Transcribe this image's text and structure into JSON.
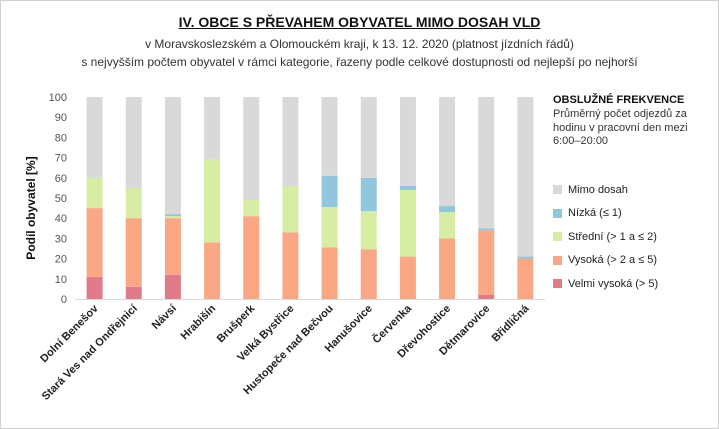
{
  "chart_data": {
    "type": "bar",
    "stacked": true,
    "title": "IV. OBCE S PŘEVAHEM OBYVATEL MIMO DOSAH VLD",
    "subtitle_line1": "v Moravskoslezském a Olomouckém kraji, k 13. 12. 2020 (platnost jízdních řádů)",
    "subtitle_line2": "s nejvyšším počtem  obyvatel v rámci kategorie, řazeny podle celkové dostupnosti od nejlepší po nejhorší",
    "ylabel": "Podíl obyvatel [%]",
    "xlabel": "",
    "ylim": [
      0,
      100
    ],
    "yticks": [
      0,
      10,
      20,
      30,
      40,
      50,
      60,
      70,
      80,
      90,
      100
    ],
    "grid": false,
    "legend_heading": "OBSLUŽNÉ FREKVENCE",
    "legend_note": "Průměrný počet odjezdů za hodinu v pracovní den mezi 6:00–20:00",
    "legend_position": "right",
    "categories": [
      "Dolní Benešov",
      "Stará Ves nad Ondřejnicí",
      "Návsí",
      "Hrabišín",
      "Brušperk",
      "Velká Bystřice",
      "Hustopeče nad Bečvou",
      "Hanušovice",
      "Červenka",
      "Dřevohostice",
      "Dětmarovice",
      "Břidličná"
    ],
    "series": [
      {
        "name": "Velmi vysoká (> 5)",
        "color": "#e07b8a",
        "values": [
          11,
          6,
          12,
          0,
          0,
          0,
          0,
          0,
          0,
          0,
          2,
          0
        ]
      },
      {
        "name": "Vysoká (> 2 a ≤ 5)",
        "color": "#f9a784",
        "values": [
          34,
          34,
          28,
          28,
          41,
          33,
          25.5,
          24.5,
          21,
          30,
          32,
          20
        ]
      },
      {
        "name": "Střední (> 1 a ≤ 2)",
        "color": "#d7eda4",
        "values": [
          15,
          15,
          1,
          41,
          8,
          23,
          20,
          19,
          33,
          13,
          0,
          0
        ]
      },
      {
        "name": "Nízká (≤ 1)",
        "color": "#92c5de",
        "values": [
          0,
          0,
          1,
          0,
          0,
          0,
          15.5,
          16.5,
          2,
          3,
          1,
          1
        ]
      },
      {
        "name": "Mimo dosah",
        "color": "#d9d9d9",
        "values": [
          40,
          45,
          58,
          31,
          51,
          44,
          39,
          40,
          44,
          54,
          65,
          79
        ]
      }
    ],
    "legend_order": [
      "Mimo dosah",
      "Nízká (≤ 1)",
      "Střední (> 1 a ≤ 2)",
      "Vysoká (> 2 a ≤ 5)",
      "Velmi vysoká (> 5)"
    ]
  }
}
